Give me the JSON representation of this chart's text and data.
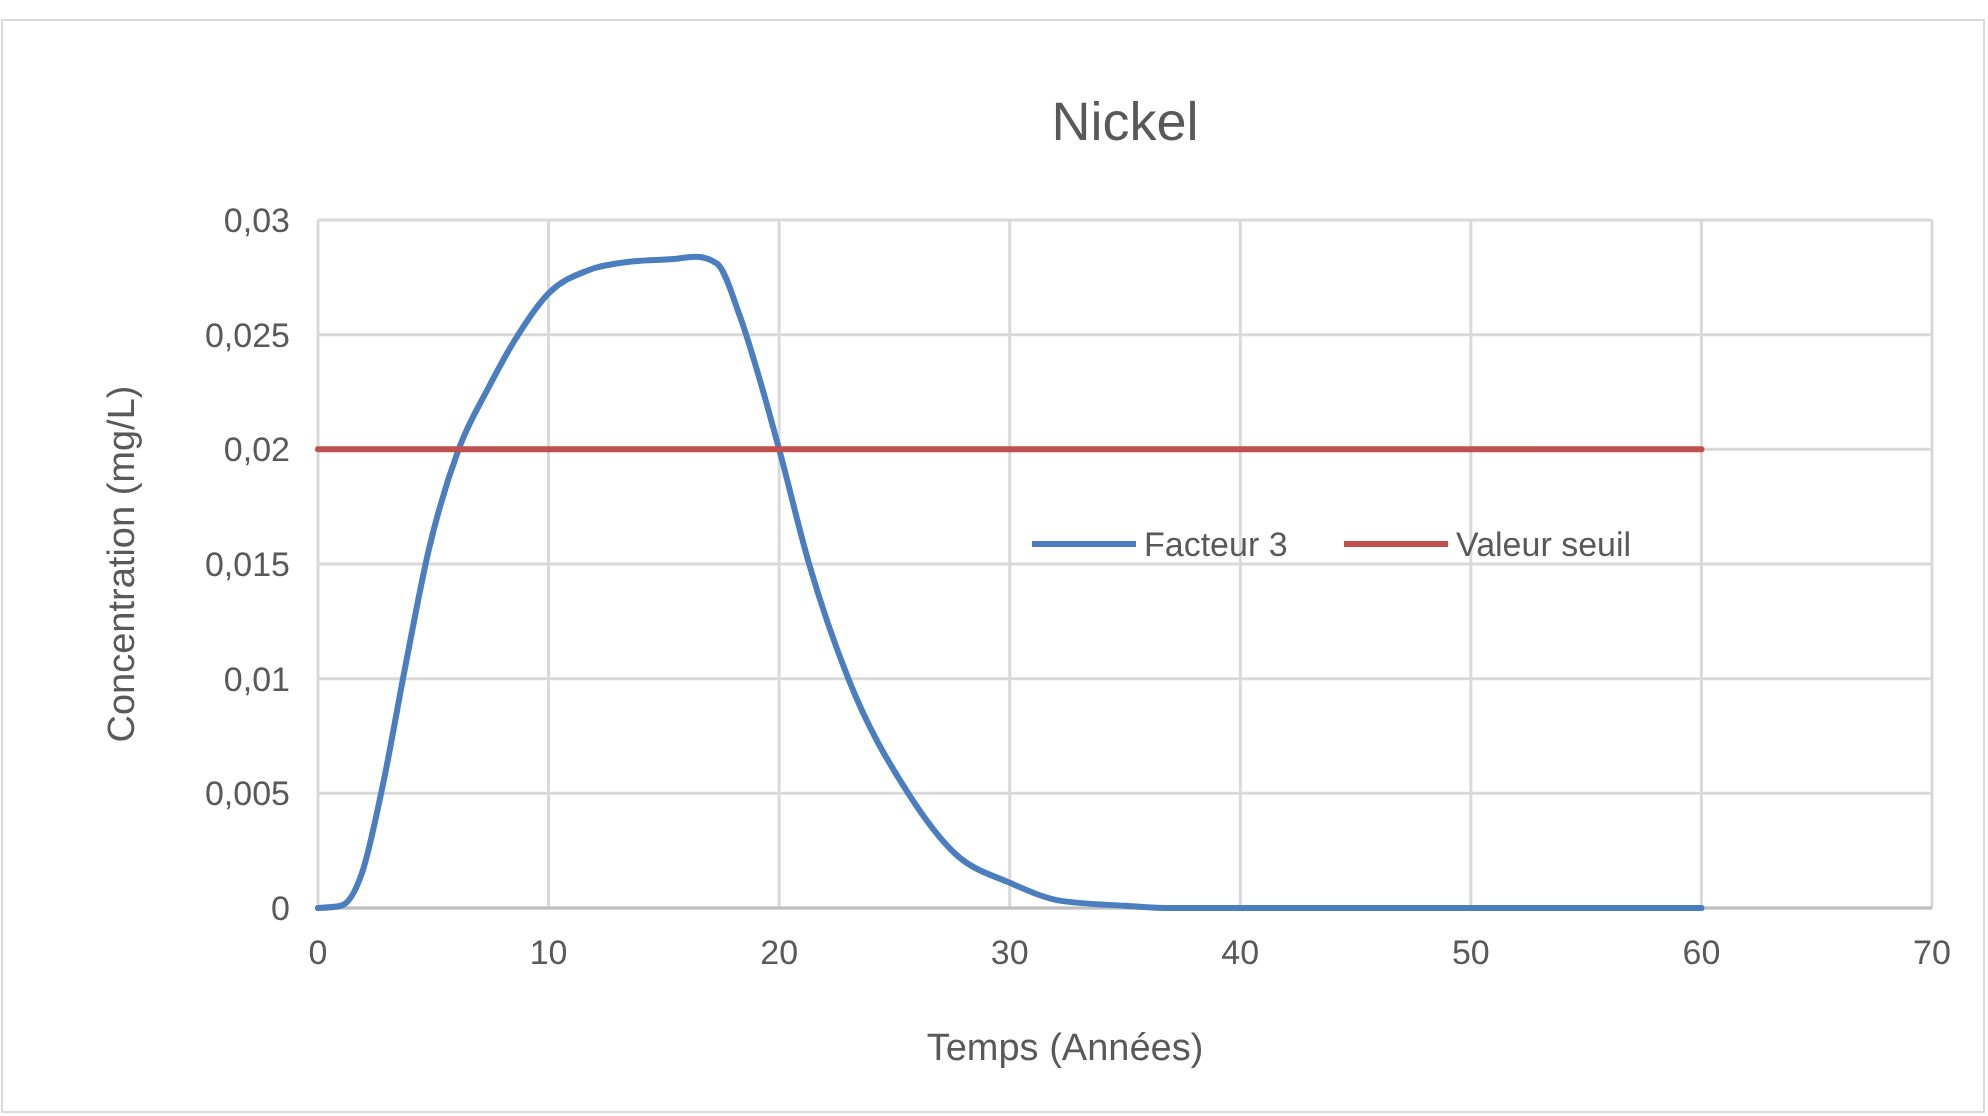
{
  "chart_data": {
    "type": "line",
    "title": "Nickel",
    "xlabel": "Temps (Années)",
    "ylabel": "Concentration (mg/L)",
    "xlim": [
      0,
      70
    ],
    "xticks": [
      0,
      10,
      20,
      30,
      40,
      50,
      60,
      70
    ],
    "ylim": [
      0,
      0.03
    ],
    "yticks": [
      {
        "value": 0,
        "label": "0"
      },
      {
        "value": 0.005,
        "label": "0,005"
      },
      {
        "value": 0.01,
        "label": "0,01"
      },
      {
        "value": 0.015,
        "label": "0,015"
      },
      {
        "value": 0.02,
        "label": "0,02"
      },
      {
        "value": 0.025,
        "label": "0,025"
      },
      {
        "value": 0.03,
        "label": "0,03"
      }
    ],
    "grid": true,
    "legend": "right",
    "marker": "none",
    "line_style": "solid",
    "series": [
      {
        "name": "Facteur 3",
        "color": "#4a7ebf",
        "x": [
          0,
          1,
          1.9,
          2.8,
          3.8,
          4.8,
          6.1,
          7.4,
          8.5,
          10,
          11.7,
          13.7,
          15.4,
          16.4,
          17.3,
          18.3,
          19.2,
          20,
          21.3,
          23,
          25.6,
          27.6,
          30,
          32.3,
          35,
          37,
          40,
          50,
          60
        ],
        "values": [
          0,
          0.0001,
          0.0015,
          0.0053,
          0.0106,
          0.0156,
          0.02,
          0.0227,
          0.0247,
          0.0268,
          0.0278,
          0.0282,
          0.0283,
          0.0284,
          0.0281,
          0.0258,
          0.0229,
          0.02,
          0.015,
          0.01,
          0.005,
          0.0024,
          0.0011,
          0.0003,
          0.0001,
          0,
          0,
          0,
          0
        ]
      },
      {
        "name": "Valeur seuil",
        "color": "#c0504d",
        "x": [
          0,
          60
        ],
        "values": [
          0.02,
          0.02
        ]
      }
    ]
  }
}
